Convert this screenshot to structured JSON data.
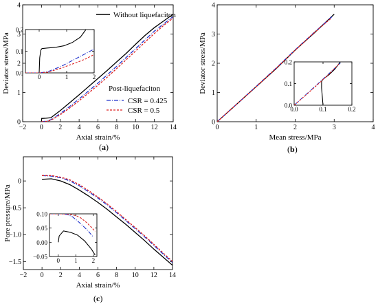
{
  "figure": {
    "panels": [
      {
        "label_open": "(",
        "label_letter": "a",
        "label_close": ")"
      },
      {
        "label_open": "(",
        "label_letter": "b",
        "label_close": ")"
      },
      {
        "label_open": "(",
        "label_letter": "c",
        "label_close": ")"
      }
    ],
    "legend": {
      "without": "Without liquefaciton",
      "post_title": "Post-liquefaciton",
      "csr1": "CSR = 0.425",
      "csr2": "CSR = 0.5"
    }
  },
  "chart_data": [
    {
      "id": "a",
      "type": "line",
      "xlabel": "Axial strain/%",
      "ylabel": "Deviator stress/MPa",
      "xlim": [
        -2,
        14
      ],
      "ylim": [
        0,
        4
      ],
      "xticks": [
        -2,
        0,
        2,
        4,
        6,
        8,
        10,
        12,
        14
      ],
      "yticks": [
        0,
        1,
        2,
        3,
        4
      ],
      "legend_position": "top-right",
      "grid": false,
      "series": [
        {
          "name": "Without liquefaciton",
          "color": "#000000",
          "dash": "solid",
          "x": [
            0,
            0.02,
            0.5,
            1,
            2,
            3,
            4,
            5,
            6,
            7,
            8,
            9,
            10,
            11,
            12,
            13,
            14
          ],
          "y": [
            0,
            0.11,
            0.12,
            0.14,
            0.38,
            0.65,
            0.92,
            1.2,
            1.48,
            1.76,
            2.05,
            2.34,
            2.65,
            2.95,
            3.22,
            3.45,
            3.68
          ]
        },
        {
          "name": "CSR = 0.425",
          "color": "#2233cc",
          "dash": "dashdot",
          "x": [
            0,
            0.5,
            1,
            2,
            3,
            4,
            5,
            6,
            7,
            8,
            9,
            10,
            11,
            12,
            13,
            14
          ],
          "y": [
            0,
            0.02,
            0.07,
            0.28,
            0.52,
            0.78,
            1.05,
            1.32,
            1.61,
            1.9,
            2.2,
            2.5,
            2.8,
            3.1,
            3.35,
            3.6
          ]
        },
        {
          "name": "CSR = 0.5",
          "color": "#dd2222",
          "dash": "dash",
          "x": [
            0,
            0.5,
            1,
            2,
            3,
            4,
            5,
            6,
            7,
            8,
            9,
            10,
            11,
            12,
            13,
            14
          ],
          "y": [
            0,
            0.01,
            0.05,
            0.24,
            0.47,
            0.72,
            0.98,
            1.25,
            1.53,
            1.82,
            2.12,
            2.42,
            2.72,
            3.02,
            3.3,
            3.55
          ]
        }
      ],
      "inset": {
        "xlim": [
          -0.5,
          2
        ],
        "ylim": [
          0,
          0.2
        ],
        "xticks": [
          0,
          1,
          2
        ],
        "yticks": [
          0.0,
          0.1,
          0.2
        ],
        "series": [
          {
            "name": "Without liquefaciton",
            "color": "#000000",
            "dash": "solid",
            "x": [
              0,
              0.02,
              0.06,
              0.1,
              0.3,
              0.6,
              0.9,
              1.2,
              1.5,
              1.7
            ],
            "y": [
              0,
              0.07,
              0.105,
              0.112,
              0.115,
              0.118,
              0.125,
              0.14,
              0.165,
              0.2
            ]
          },
          {
            "name": "CSR = 0.425",
            "color": "#2233cc",
            "dash": "dashdot",
            "x": [
              -0.5,
              0,
              0.3,
              0.5,
              0.8,
              1.1,
              1.4,
              1.7,
              2.0
            ],
            "y": [
              0,
              0,
              0.005,
              0.015,
              0.03,
              0.05,
              0.07,
              0.09,
              0.11
            ]
          },
          {
            "name": "CSR = 0.5",
            "color": "#dd2222",
            "dash": "dash",
            "x": [
              -0.5,
              0,
              0.3,
              0.5,
              0.8,
              1.1,
              1.4,
              1.7,
              2.0
            ],
            "y": [
              0,
              0,
              0.003,
              0.01,
              0.022,
              0.036,
              0.05,
              0.065,
              0.085
            ]
          }
        ]
      }
    },
    {
      "id": "b",
      "type": "line",
      "xlabel": "Mean stress/MPa",
      "ylabel": "Deviator stress/MPa",
      "xlim": [
        0,
        4
      ],
      "ylim": [
        0,
        4
      ],
      "xticks": [
        0,
        1,
        2,
        3,
        4
      ],
      "yticks": [
        0,
        1,
        2,
        3,
        4
      ],
      "grid": false,
      "series": [
        {
          "name": "Without liquefaciton",
          "color": "#000000",
          "dash": "solid",
          "x": [
            0,
            0.5,
            1,
            1.5,
            2,
            2.5,
            3.0
          ],
          "y": [
            0,
            0.6,
            1.2,
            1.8,
            2.45,
            3.05,
            3.68
          ]
        },
        {
          "name": "CSR = 0.425",
          "color": "#2233cc",
          "dash": "dashdot",
          "x": [
            0,
            0.5,
            1,
            1.5,
            2,
            2.5,
            2.95
          ],
          "y": [
            0,
            0.6,
            1.21,
            1.82,
            2.46,
            3.07,
            3.6
          ]
        },
        {
          "name": "CSR = 0.5",
          "color": "#dd2222",
          "dash": "dash",
          "x": [
            0,
            0.5,
            1,
            1.5,
            2,
            2.5,
            2.93
          ],
          "y": [
            0,
            0.6,
            1.2,
            1.81,
            2.45,
            3.06,
            3.55
          ]
        }
      ],
      "inset": {
        "xlim": [
          0,
          0.2
        ],
        "ylim": [
          0,
          0.2
        ],
        "xticks": [
          0.0,
          0.1,
          0.2
        ],
        "yticks": [
          0.0,
          0.1,
          0.2
        ],
        "series": [
          {
            "name": "Without liquefaciton",
            "color": "#000000",
            "dash": "solid",
            "x": [
              0.1,
              0.095,
              0.095,
              0.1,
              0.12,
              0.14,
              0.16
            ],
            "y": [
              0,
              0.08,
              0.11,
              0.12,
              0.14,
              0.165,
              0.2
            ]
          },
          {
            "name": "CSR = 0.425",
            "color": "#2233cc",
            "dash": "dashdot",
            "x": [
              0,
              0.04,
              0.08,
              0.12,
              0.16
            ],
            "y": [
              0,
              0.048,
              0.096,
              0.145,
              0.195
            ]
          },
          {
            "name": "CSR = 0.5",
            "color": "#dd2222",
            "dash": "dash",
            "x": [
              0,
              0.04,
              0.08,
              0.12,
              0.155
            ],
            "y": [
              0,
              0.046,
              0.094,
              0.143,
              0.19
            ]
          }
        ]
      }
    },
    {
      "id": "c",
      "type": "line",
      "xlabel": "Axial strain/%",
      "ylabel": "Pore pressure/MPa",
      "xlim": [
        -2,
        14
      ],
      "ylim": [
        -1.65,
        0.45
      ],
      "xticks": [
        -2,
        0,
        2,
        4,
        6,
        8,
        10,
        12,
        14
      ],
      "yticks": [
        -1.5,
        -1.0,
        -0.5,
        0
      ],
      "ytick_labels": [
        "−1.5",
        "−1.0",
        "−0.5",
        "0"
      ],
      "grid": false,
      "series": [
        {
          "name": "Without liquefaciton",
          "color": "#000000",
          "dash": "solid",
          "x": [
            0,
            1,
            2,
            3,
            4,
            5,
            6,
            7,
            8,
            9,
            10,
            11,
            12,
            13,
            14
          ],
          "y": [
            0.03,
            0.04,
            0.0,
            -0.07,
            -0.17,
            -0.28,
            -0.4,
            -0.53,
            -0.67,
            -0.81,
            -0.96,
            -1.11,
            -1.27,
            -1.42,
            -1.57
          ]
        },
        {
          "name": "CSR = 0.425",
          "color": "#2233cc",
          "dash": "dashdot",
          "x": [
            0,
            1,
            2,
            3,
            4,
            5,
            6,
            7,
            8,
            9,
            10,
            11,
            12,
            13,
            14
          ],
          "y": [
            0.1,
            0.09,
            0.06,
            0.0,
            -0.09,
            -0.2,
            -0.32,
            -0.45,
            -0.59,
            -0.74,
            -0.89,
            -1.04,
            -1.2,
            -1.36,
            -1.52
          ]
        },
        {
          "name": "CSR = 0.5",
          "color": "#dd2222",
          "dash": "dash",
          "x": [
            0,
            1,
            2,
            3,
            4,
            5,
            6,
            7,
            8,
            9,
            10,
            11,
            12,
            13,
            14
          ],
          "y": [
            0.1,
            0.1,
            0.07,
            0.02,
            -0.07,
            -0.18,
            -0.3,
            -0.43,
            -0.57,
            -0.72,
            -0.87,
            -1.02,
            -1.18,
            -1.34,
            -1.5
          ]
        }
      ],
      "inset": {
        "xlim": [
          -0.5,
          2.2
        ],
        "ylim": [
          -0.05,
          0.1
        ],
        "xticks": [
          0,
          1,
          2
        ],
        "yticks": [
          -0.05,
          0.0,
          0.05,
          0.1
        ],
        "ytick_labels": [
          "−0.05",
          "0.00",
          "0.05",
          "0.10"
        ],
        "series": [
          {
            "name": "Without liquefaciton",
            "color": "#000000",
            "dash": "solid",
            "x": [
              0,
              0.05,
              0.3,
              0.7,
              1.1,
              1.5,
              1.9,
              2.1
            ],
            "y": [
              0.0,
              0.022,
              0.04,
              0.035,
              0.025,
              0.005,
              -0.025,
              -0.045
            ]
          },
          {
            "name": "CSR = 0.425",
            "color": "#2233cc",
            "dash": "dashdot",
            "x": [
              -0.5,
              0.2,
              0.5,
              0.8,
              1.1,
              1.4,
              1.7,
              2.0
            ],
            "y": [
              0.1,
              0.1,
              0.098,
              0.09,
              0.075,
              0.058,
              0.04,
              0.018
            ]
          },
          {
            "name": "CSR = 0.5",
            "color": "#dd2222",
            "dash": "dash",
            "x": [
              -0.5,
              0.2,
              0.6,
              1.0,
              1.3,
              1.6,
              1.9,
              2.1
            ],
            "y": [
              0.1,
              0.1,
              0.099,
              0.094,
              0.085,
              0.07,
              0.052,
              0.038
            ]
          }
        ]
      }
    }
  ]
}
